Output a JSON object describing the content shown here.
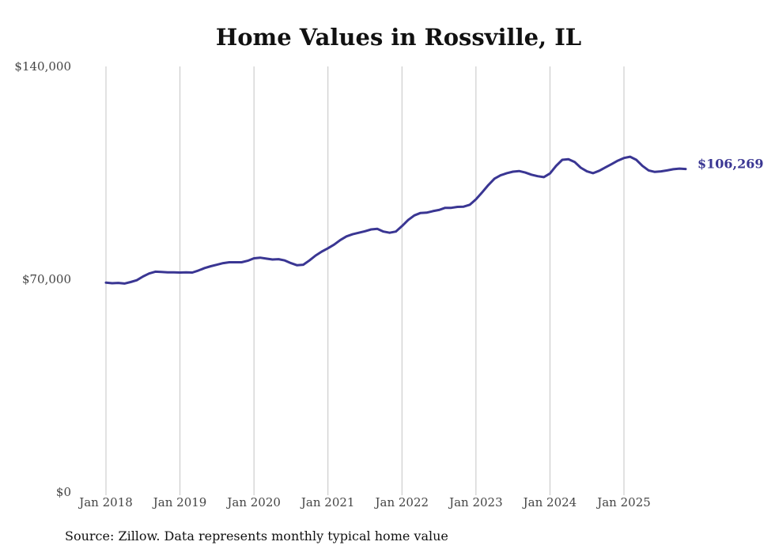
{
  "chart_data": {
    "type": "line",
    "title": "Home Values in Rossville, IL",
    "xlabel": "",
    "ylabel": "",
    "x_ticks": [
      "Jan 2018",
      "Jan 2019",
      "Jan 2020",
      "Jan 2021",
      "Jan 2022",
      "Jan 2023",
      "Jan 2024",
      "Jan 2025"
    ],
    "y_ticks": [
      "$0",
      "$70,000",
      "$140,000"
    ],
    "y_tick_values": [
      0,
      70000,
      140000
    ],
    "ylim": [
      0,
      140000
    ],
    "x_range_months": [
      0,
      95
    ],
    "grid": "vertical",
    "line_color": "#3a3693",
    "end_label": "$106,269",
    "series": [
      {
        "name": "Typical home value",
        "start": "Jan 2018",
        "interval": "monthly",
        "values": [
          68900,
          68700,
          68800,
          68600,
          69100,
          69700,
          70900,
          71900,
          72500,
          72400,
          72300,
          72300,
          72200,
          72300,
          72200,
          72900,
          73700,
          74300,
          74800,
          75300,
          75600,
          75600,
          75600,
          76100,
          76900,
          77100,
          76800,
          76500,
          76600,
          76200,
          75300,
          74600,
          74800,
          76200,
          77800,
          79100,
          80200,
          81400,
          82900,
          84100,
          84800,
          85300,
          85800,
          86400,
          86600,
          85700,
          85300,
          85700,
          87500,
          89500,
          91000,
          91800,
          91900,
          92400,
          92800,
          93500,
          93500,
          93800,
          93900,
          94500,
          96300,
          98600,
          101000,
          103100,
          104200,
          104900,
          105400,
          105600,
          105100,
          104400,
          103900,
          103600,
          104800,
          107300,
          109300,
          109500,
          108600,
          106700,
          105500,
          104900,
          105700,
          106800,
          107900,
          109000,
          109900,
          110300,
          109300,
          107300,
          105800,
          105300,
          105500,
          105800,
          106200,
          106400,
          106269
        ]
      }
    ]
  },
  "footer": {
    "source": "Source: Zillow. Data represents monthly typical home value"
  }
}
